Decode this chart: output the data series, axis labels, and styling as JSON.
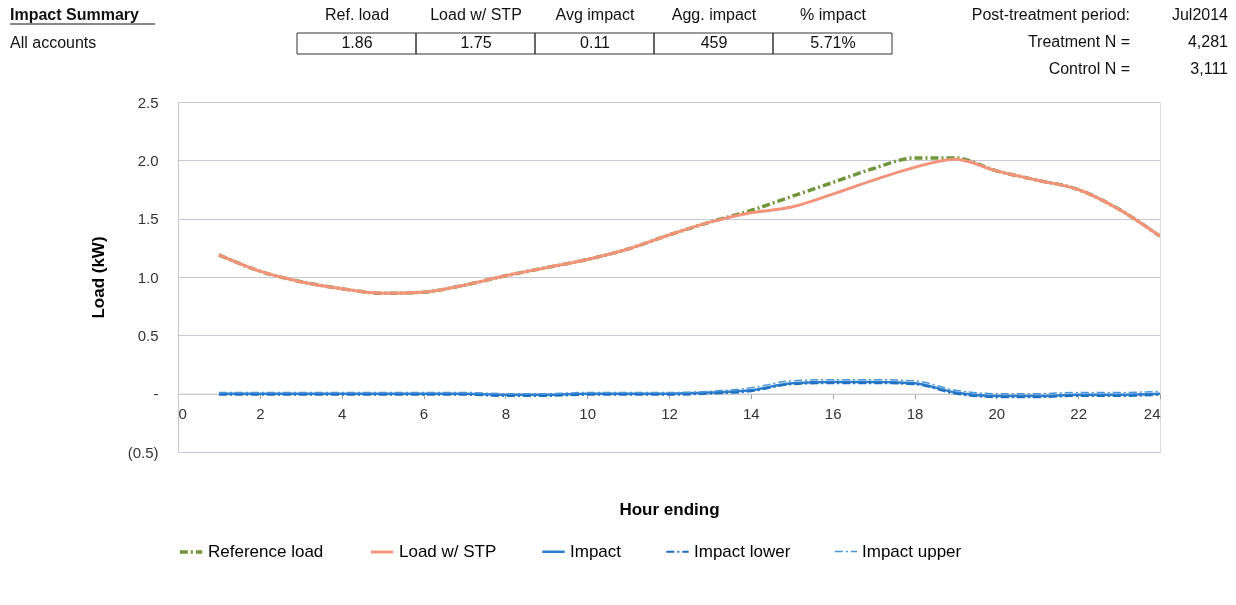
{
  "chart_data": {
    "type": "line",
    "xlabel": "Hour ending",
    "ylabel": "Load (kW)",
    "x": [
      1,
      2,
      3,
      4,
      5,
      6,
      7,
      8,
      9,
      10,
      11,
      12,
      13,
      14,
      15,
      16,
      17,
      18,
      19,
      20,
      21,
      22,
      23,
      24
    ],
    "series": [
      {
        "name": "Reference load",
        "color": "#70953a",
        "line_style": "dashed",
        "values": [
          1.19,
          1.05,
          0.96,
          0.9,
          0.86,
          0.87,
          0.93,
          1.01,
          1.08,
          1.15,
          1.24,
          1.36,
          1.47,
          1.57,
          1.69,
          1.81,
          1.93,
          2.02,
          2.02,
          1.91,
          1.83,
          1.75,
          1.58,
          1.35
        ]
      },
      {
        "name": "Load w/ STP",
        "color": "#f4937a",
        "line_style": "solid",
        "values": [
          1.19,
          1.05,
          0.96,
          0.9,
          0.86,
          0.87,
          0.93,
          1.01,
          1.08,
          1.15,
          1.24,
          1.36,
          1.47,
          1.55,
          1.6,
          1.71,
          1.83,
          1.94,
          2.01,
          1.91,
          1.83,
          1.75,
          1.58,
          1.35
        ]
      },
      {
        "name": "Impact",
        "color": "#2f7fcf",
        "line_style": "solid",
        "values": [
          0,
          0,
          0,
          0,
          0,
          0,
          0,
          -0.01,
          -0.01,
          0,
          0,
          0,
          0.01,
          0.03,
          0.09,
          0.1,
          0.1,
          0.09,
          0.01,
          -0.02,
          -0.02,
          -0.01,
          -0.01,
          0
        ]
      },
      {
        "name": "Impact lower",
        "color": "#1f6fc0",
        "line_style": "dashed",
        "values": [
          -0.01,
          -0.01,
          -0.01,
          -0.01,
          -0.01,
          -0.01,
          -0.01,
          -0.02,
          -0.02,
          -0.01,
          -0.01,
          -0.01,
          0,
          0.02,
          0.08,
          0.09,
          0.09,
          0.08,
          0,
          -0.03,
          -0.03,
          -0.02,
          -0.02,
          -0.01
        ]
      },
      {
        "name": "Impact upper",
        "color": "#4a95dc",
        "line_style": "dashed",
        "values": [
          0.01,
          0.01,
          0.01,
          0.01,
          0.01,
          0.01,
          0.01,
          0,
          0,
          0.01,
          0.01,
          0.01,
          0.02,
          0.05,
          0.11,
          0.12,
          0.12,
          0.11,
          0.03,
          0,
          0,
          0.01,
          0.01,
          0.02
        ]
      }
    ],
    "xlim": [
      0,
      24
    ],
    "xticks": [
      0,
      2,
      4,
      6,
      8,
      10,
      12,
      14,
      16,
      18,
      20,
      22,
      24
    ],
    "ylim": [
      -0.5,
      2.5
    ],
    "yticks": [
      {
        "value": -0.5,
        "label": "(0.5)"
      },
      {
        "value": 0,
        "label": "-"
      },
      0.5,
      {
        "value": 1,
        "label": "1.0"
      },
      1.5,
      {
        "value": 2,
        "label": "2.0"
      },
      2.5
    ],
    "grid": "y",
    "legend": "bottom",
    "annotations": [
      "Impact Summary",
      "All accounts",
      "Ref. load",
      "Load w/ STP",
      "Avg impact",
      "Agg. impact",
      "% impact",
      "1.86",
      "1.75",
      "0.11",
      "459",
      "5.71%",
      "Post-treatment period:",
      "Jul2014",
      "Treatment N =",
      "4,281",
      "Control N =",
      "3,111"
    ]
  }
}
